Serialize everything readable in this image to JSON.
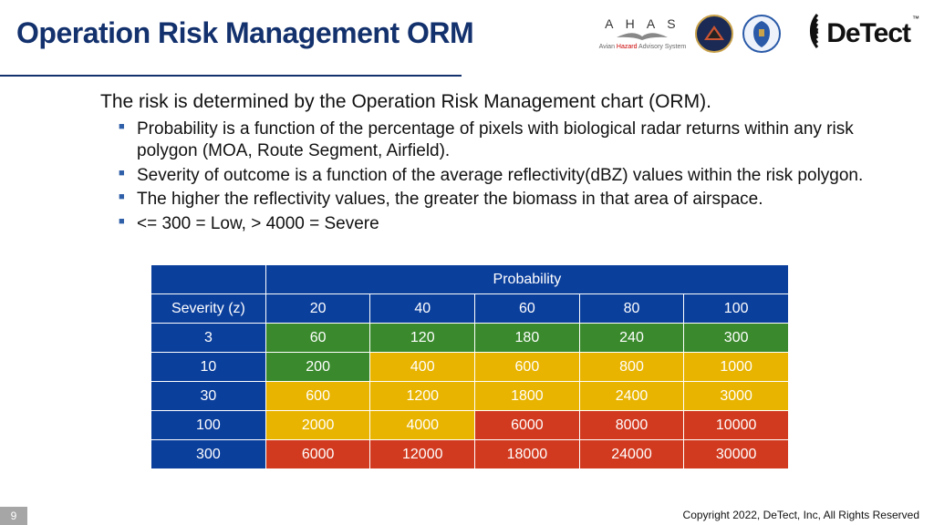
{
  "title": "Operation Risk Management ORM",
  "logos": {
    "ahas": {
      "letters": "A H A S",
      "sub_pre": "Avian ",
      "sub_hazard": "Hazard",
      "sub_post": " Advisory System"
    },
    "detect": {
      "text": "DeTect",
      "tm": "™"
    }
  },
  "intro": "The risk is determined by the Operation Risk Management chart (ORM).",
  "bullets": [
    "Probability is a function of the percentage of pixels with biological radar returns within any risk polygon (MOA, Route Segment, Airfield).",
    "Severity of outcome is a function of the average reflectivity(dBZ) values within the risk polygon.",
    "The higher the reflectivity values, the greater the biomass in that area of airspace.",
    "<= 300 = Low, > 4000 = Severe"
  ],
  "table": {
    "prob_header": "Probability",
    "sev_header": "Severity (z)",
    "prob_cols": [
      "20",
      "40",
      "60",
      "80",
      "100"
    ],
    "rows": [
      {
        "label": "3",
        "cells": [
          "60",
          "120",
          "180",
          "240",
          "300"
        ],
        "colors": [
          "g",
          "g",
          "g",
          "g",
          "g"
        ]
      },
      {
        "label": "10",
        "cells": [
          "200",
          "400",
          "600",
          "800",
          "1000"
        ],
        "colors": [
          "g",
          "y",
          "y",
          "y",
          "y"
        ]
      },
      {
        "label": "30",
        "cells": [
          "600",
          "1200",
          "1800",
          "2400",
          "3000"
        ],
        "colors": [
          "y",
          "y",
          "y",
          "y",
          "y"
        ]
      },
      {
        "label": "100",
        "cells": [
          "2000",
          "4000",
          "6000",
          "8000",
          "10000"
        ],
        "colors": [
          "y",
          "y",
          "r",
          "r",
          "r"
        ]
      },
      {
        "label": "300",
        "cells": [
          "6000",
          "12000",
          "18000",
          "24000",
          "30000"
        ],
        "colors": [
          "r",
          "r",
          "r",
          "r",
          "r"
        ]
      }
    ],
    "palette": {
      "g": "#3a8a2d",
      "y": "#e8b400",
      "r": "#d13a1f",
      "header": "#0b3f9c"
    }
  },
  "footer": {
    "page": "9",
    "copyright": "Copyright 2022, DeTect, Inc, All Rights Reserved"
  }
}
